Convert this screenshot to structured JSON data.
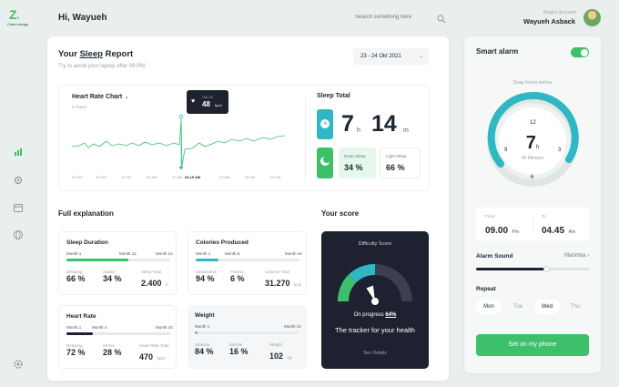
{
  "logo": {
    "letter": "Z",
    "sub": "z",
    "name": "Cumo nongo"
  },
  "header": {
    "greeting": "Hi, Wayueh",
    "search_placeholder": "Search something here",
    "account_label": "Bsaic's Account",
    "account_name": "Wayueh Asback"
  },
  "report": {
    "title_prefix": "Your ",
    "title_highlight": "Sleep",
    "title_suffix": " Report",
    "subtitle": "Try to avoid your laptop after 09 PM.",
    "date_range": "23 - 24 Okt 2021"
  },
  "heart_chart": {
    "title": "Heart Rate Chart",
    "unit": "In hours",
    "tooltip_date": "Okt 24",
    "tooltip_value": "48",
    "tooltip_unit": "bpm",
    "x_ticks": [
      "09 PM",
      "10 PM",
      "11 PM",
      "00 AM",
      "01 AM",
      "04.15 AM",
      "03 AM",
      "04 AM",
      "05 AM"
    ]
  },
  "sleep_total": {
    "title": "Sleep Total",
    "hours": "7",
    "h_unit": "h",
    "minutes": "14",
    "m_unit": "m",
    "deep_label": "Deep Sleep",
    "deep_value": "34 %",
    "light_label": "Light Sleep",
    "light_value": "66 %"
  },
  "explanation": {
    "title": "Full explanation",
    "sleep_duration": {
      "title": "Sleep Duration",
      "marks": [
        "Month 1",
        "Month 12",
        "Month 24"
      ],
      "progress": 0.6,
      "stats": [
        {
          "label": "Sleeping",
          "value": "66 %"
        },
        {
          "label": "Awake",
          "value": "34 %"
        },
        {
          "label": "Sleep Total",
          "value": "2.400",
          "unit": "h"
        }
      ]
    },
    "calories": {
      "title": "Colories Produced",
      "marks": [
        "Month 1",
        "Month 6",
        "Month 24"
      ],
      "progress": 0.22,
      "stats": [
        {
          "label": "Satisfaction",
          "value": "94 %"
        },
        {
          "label": "Fitness",
          "value": "6 %"
        },
        {
          "label": "Calories Total",
          "value": "31.270",
          "unit": "kcal"
        }
      ]
    },
    "heart_rate": {
      "title": "Heart Rate",
      "marks": [
        "Month 1",
        "Month 4",
        "Month 24"
      ],
      "progress": 0.25,
      "stats": [
        {
          "label": "Relaxing",
          "value": "72 %"
        },
        {
          "label": "Stress",
          "value": "28 %"
        },
        {
          "label": "Heart Rate Total",
          "value": "470",
          "unit": "bpm"
        }
      ]
    },
    "weight": {
      "title": "Weight",
      "marks": [
        "Month 1",
        "Month 24"
      ],
      "progress": 0.03,
      "stats": [
        {
          "label": "Stamina",
          "value": "84 %"
        },
        {
          "label": "Muscle",
          "value": "16 %"
        },
        {
          "label": "Weight",
          "value": "102",
          "unit": "kg"
        }
      ]
    }
  },
  "score": {
    "title": "Your score",
    "gauge_title": "Difficulty Score",
    "progress_label": "On progress",
    "progress_value": "64%",
    "message": "The tracker for your health",
    "link": "See Details"
  },
  "alarm": {
    "title": "Smart alarm",
    "toggle_on": true,
    "drag_hint": "Drag hours below",
    "clock_hours": "7",
    "clock_h": "h",
    "clock_minutes": "45 Minutes",
    "from_label": "From",
    "from_time": "09.00",
    "from_ampm": "Pm",
    "to_label": "To",
    "to_time": "04.45",
    "to_ampm": "Am",
    "sound_label": "Alarm Sound",
    "sound_value": "Marimba",
    "sound_level": 0.62,
    "repeat_label": "Repeat",
    "days": [
      "Mon",
      "Tue",
      "Wed",
      "Thu"
    ],
    "set_button": "Set on my phone"
  },
  "colors": {
    "accent": "#3cc06a",
    "teal": "#2fb7c4",
    "dark": "#1e2230"
  }
}
